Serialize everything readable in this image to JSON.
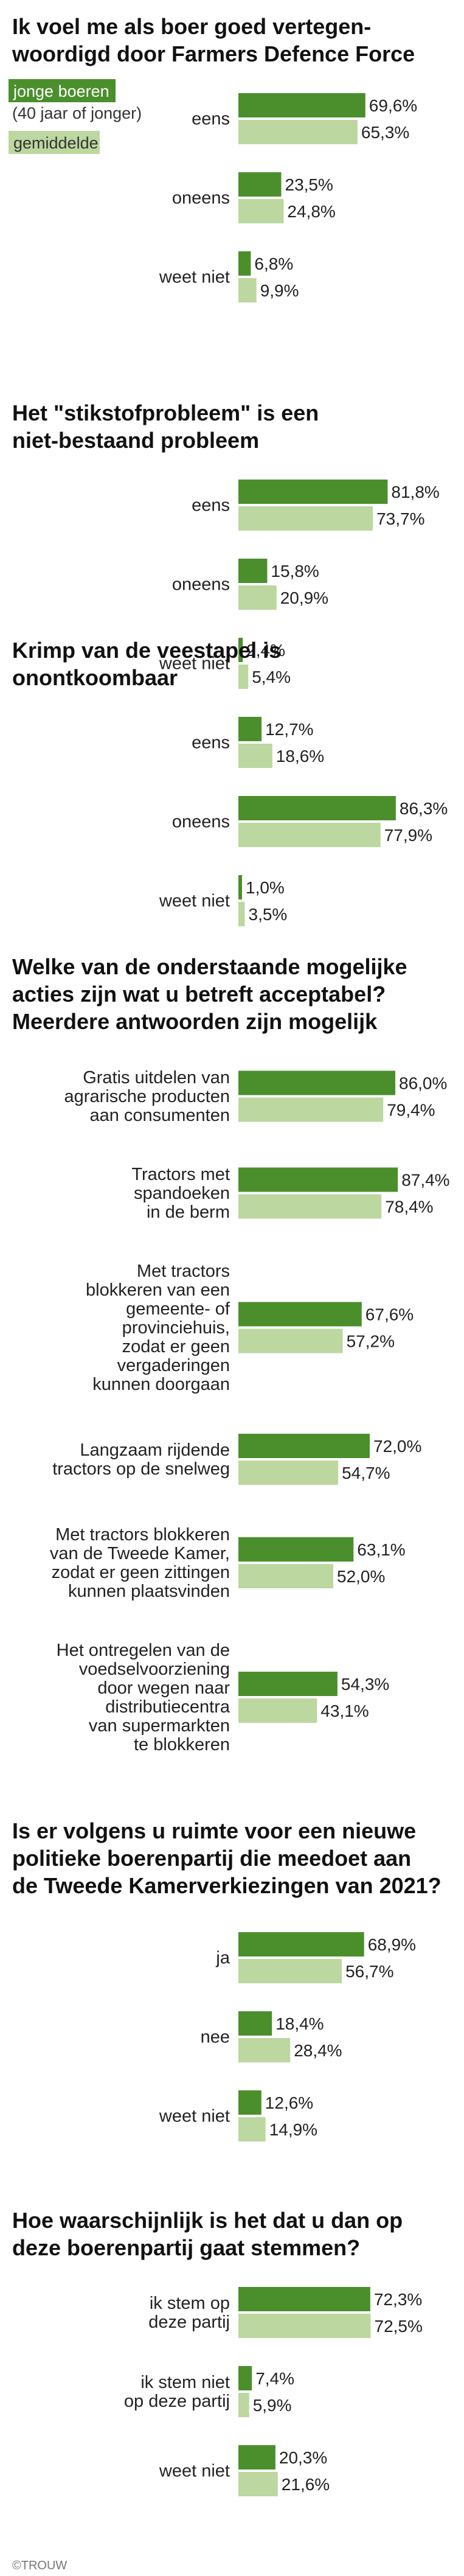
{
  "legend": {
    "young_label": "jonge boeren",
    "young_sublabel": "(40 jaar of jonger)",
    "avg_label": "gemiddelde"
  },
  "colors": {
    "young": "#4b8f2c",
    "average": "#bcd7a0"
  },
  "credit": "©TROUW",
  "chart_data": [
    {
      "type": "bar",
      "title": [
        "Ik voel me als boer goed vertegen-",
        "woordigd door Farmers Defence Force"
      ],
      "categories": [
        [
          "eens"
        ],
        [
          "oneens"
        ],
        [
          "weet niet"
        ]
      ],
      "series": [
        {
          "name": "jonge boeren",
          "values": [
            69.6,
            23.5,
            6.8
          ]
        },
        {
          "name": "gemiddelde",
          "values": [
            65.3,
            24.8,
            9.9
          ]
        }
      ]
    },
    {
      "type": "bar",
      "title": [
        "Het \"stikstofprobleem\" is een",
        "niet-bestaand probleem"
      ],
      "categories": [
        [
          "eens"
        ],
        [
          "oneens"
        ],
        [
          "weet niet"
        ]
      ],
      "series": [
        {
          "name": "jonge boeren",
          "values": [
            81.8,
            15.8,
            2.4
          ]
        },
        {
          "name": "gemiddelde",
          "values": [
            73.7,
            20.9,
            5.4
          ]
        }
      ]
    },
    {
      "type": "bar",
      "title": [
        "Krimp van de veestapel is",
        "onontkoombaar"
      ],
      "categories": [
        [
          "eens"
        ],
        [
          "oneens"
        ],
        [
          "weet niet"
        ]
      ],
      "series": [
        {
          "name": "jonge boeren",
          "values": [
            12.7,
            86.3,
            1.0
          ]
        },
        {
          "name": "gemiddelde",
          "values": [
            18.6,
            77.9,
            3.5
          ]
        }
      ]
    },
    {
      "type": "bar",
      "title": [
        "Welke van de onderstaande mogelijke",
        "acties zijn wat u betreft acceptabel?",
        "Meerdere antwoorden zijn mogelijk"
      ],
      "categories": [
        [
          "Gratis uitdelen van",
          "agrarische producten",
          "aan consumenten"
        ],
        [
          "Tractors met",
          "spandoeken",
          "in de berm"
        ],
        [
          "Met tractors",
          "blokkeren van een",
          "gemeente- of",
          "provinciehuis,",
          "zodat er geen",
          "vergaderingen",
          "kunnen doorgaan"
        ],
        [
          "Langzaam rijdende",
          "tractors op de snelweg"
        ],
        [
          "Met tractors blokkeren",
          "van de Tweede Kamer,",
          "zodat er geen zittingen",
          "kunnen plaatsvinden"
        ],
        [
          "Het ontregelen van de",
          "voedselvoorziening",
          "door wegen naar",
          "distributiecentra",
          "van supermarkten",
          "te blokkeren"
        ]
      ],
      "series": [
        {
          "name": "jonge boeren",
          "values": [
            86.0,
            87.4,
            67.6,
            72.0,
            63.1,
            54.3
          ]
        },
        {
          "name": "gemiddelde",
          "values": [
            79.4,
            78.4,
            57.2,
            54.7,
            52.0,
            43.1
          ]
        }
      ]
    },
    {
      "type": "bar",
      "title": [
        "Is er volgens u ruimte voor een nieuwe",
        "politieke boerenpartij die meedoet aan",
        "de Tweede Kamerverkiezingen van 2021?"
      ],
      "categories": [
        [
          "ja"
        ],
        [
          "nee"
        ],
        [
          "weet niet"
        ]
      ],
      "series": [
        {
          "name": "jonge boeren",
          "values": [
            68.9,
            18.4,
            12.6
          ]
        },
        {
          "name": "gemiddelde",
          "values": [
            56.7,
            28.4,
            14.9
          ]
        }
      ]
    },
    {
      "type": "bar",
      "title": [
        "Hoe waarschijnlijk is het dat u dan op",
        "deze boerenpartij gaat stemmen?"
      ],
      "categories": [
        [
          "ik stem op",
          "deze partij"
        ],
        [
          "ik stem niet",
          "op deze partij"
        ],
        [
          "weet niet"
        ]
      ],
      "series": [
        {
          "name": "jonge boeren",
          "values": [
            72.3,
            7.4,
            20.3
          ]
        },
        {
          "name": "gemiddelde",
          "values": [
            72.5,
            5.9,
            21.6
          ]
        }
      ]
    }
  ]
}
